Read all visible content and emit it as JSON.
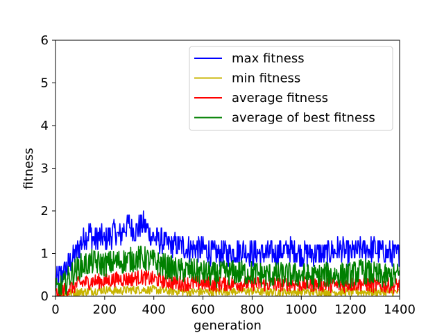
{
  "chart_data": {
    "type": "line",
    "title": "",
    "xlabel": "generation",
    "ylabel": "fitness",
    "xlim": [
      0,
      1400
    ],
    "ylim": [
      0,
      6
    ],
    "xticks": [
      0,
      200,
      400,
      600,
      800,
      1000,
      1200,
      1400
    ],
    "yticks": [
      0,
      1,
      2,
      3,
      4,
      5,
      6
    ],
    "grid": false,
    "legend_position": "top-right",
    "series": [
      {
        "name": "max fitness",
        "color": "#0000ff",
        "x": [
          0,
          20,
          40,
          60,
          80,
          100,
          120,
          140,
          160,
          180,
          200,
          220,
          240,
          260,
          280,
          300,
          320,
          340,
          360,
          380,
          400,
          420,
          440,
          460,
          480,
          500,
          550,
          600,
          650,
          700,
          750,
          800,
          850,
          900,
          950,
          1000,
          1050,
          1100,
          1150,
          1200,
          1250,
          1300,
          1350,
          1400
        ],
        "y": [
          0.3,
          0.5,
          0.6,
          0.8,
          1.0,
          1.2,
          1.4,
          1.5,
          1.3,
          1.4,
          1.3,
          1.4,
          1.5,
          1.4,
          1.6,
          1.7,
          1.5,
          1.6,
          1.7,
          1.5,
          1.4,
          1.3,
          1.3,
          1.2,
          1.2,
          1.2,
          1.1,
          1.1,
          1.0,
          1.0,
          1.1,
          1.0,
          1.0,
          1.0,
          1.1,
          1.0,
          1.0,
          1.0,
          1.1,
          1.0,
          1.1,
          1.1,
          1.0,
          1.0
        ],
        "band": 0.3
      },
      {
        "name": "min fitness",
        "color": "#c8b400",
        "x": [
          0,
          20,
          40,
          60,
          80,
          100,
          150,
          200,
          250,
          300,
          350,
          400,
          450,
          500,
          550,
          600,
          650,
          700,
          750,
          800,
          850,
          900,
          950,
          1000,
          1050,
          1100,
          1150,
          1200,
          1250,
          1300,
          1350,
          1400
        ],
        "y": [
          0.0,
          0.05,
          0.05,
          0.08,
          0.1,
          0.1,
          0.12,
          0.15,
          0.12,
          0.15,
          0.15,
          0.15,
          0.12,
          0.12,
          0.1,
          0.1,
          0.1,
          0.12,
          0.12,
          0.12,
          0.1,
          0.1,
          0.1,
          0.1,
          0.1,
          0.1,
          0.1,
          0.1,
          0.1,
          0.1,
          0.1,
          0.1
        ],
        "band": 0.1
      },
      {
        "name": "average fitness",
        "color": "#ff0000",
        "x": [
          0,
          20,
          40,
          60,
          80,
          100,
          150,
          200,
          250,
          300,
          350,
          400,
          450,
          500,
          550,
          600,
          650,
          700,
          750,
          800,
          850,
          900,
          950,
          1000,
          1050,
          1100,
          1150,
          1200,
          1250,
          1300,
          1350,
          1400
        ],
        "y": [
          0.05,
          0.1,
          0.15,
          0.2,
          0.25,
          0.3,
          0.35,
          0.35,
          0.4,
          0.4,
          0.45,
          0.4,
          0.35,
          0.3,
          0.3,
          0.3,
          0.28,
          0.3,
          0.3,
          0.3,
          0.28,
          0.28,
          0.3,
          0.28,
          0.28,
          0.28,
          0.25,
          0.28,
          0.3,
          0.25,
          0.25,
          0.25
        ],
        "band": 0.18
      },
      {
        "name": "average of best fitness",
        "color": "#008000",
        "x": [
          0,
          20,
          40,
          60,
          80,
          100,
          150,
          200,
          250,
          300,
          350,
          400,
          450,
          500,
          550,
          600,
          650,
          700,
          750,
          800,
          850,
          900,
          950,
          1000,
          1050,
          1100,
          1150,
          1200,
          1250,
          1300,
          1350,
          1400
        ],
        "y": [
          0.1,
          0.2,
          0.3,
          0.5,
          0.6,
          0.7,
          0.8,
          0.75,
          0.8,
          0.85,
          0.9,
          0.8,
          0.7,
          0.6,
          0.6,
          0.55,
          0.5,
          0.55,
          0.55,
          0.55,
          0.5,
          0.5,
          0.5,
          0.5,
          0.45,
          0.5,
          0.5,
          0.5,
          0.6,
          0.5,
          0.45,
          0.5
        ],
        "band": 0.3
      }
    ]
  }
}
